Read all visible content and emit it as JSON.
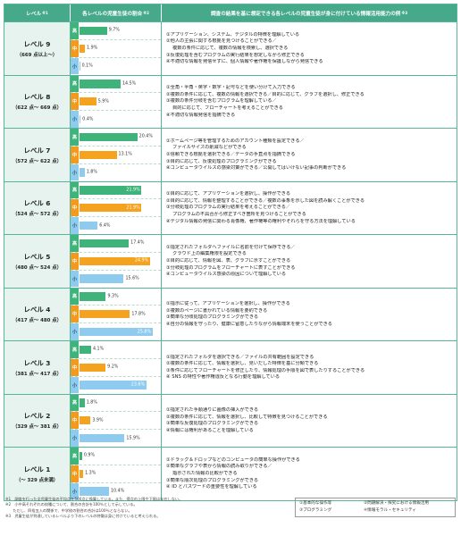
{
  "header": {
    "level": "レベル",
    "level_note": "※1",
    "ratio": "各レベルの児童生徒の割合",
    "ratio_note": "※2",
    "skill": "調査の結果を基に想定できる各レベルの児童生徒が身に付けている情報活用能力の例",
    "skill_note": "※3"
  },
  "tags": {
    "hi": "高",
    "mid": "中",
    "lo": "小"
  },
  "levels": [
    {
      "name": "レベル 9",
      "range": "（669 点以上〜）",
      "bars": [
        9.7,
        1.9,
        0.1
      ],
      "labels": [
        "9.7%",
        "1.9%",
        "0.1%"
      ],
      "skills": [
        "①アプリケーション、システム、デジタルの特徴を理解している",
        "②他人の主張に関する根拠を見つけることができる／",
        "複数の条件に応じて、複数の情報を検索し、選択できる",
        "③反復処理を含むプログラムの実行結果を想定しながら修正できる",
        "④不適切な情報を発信せずに、個人情報や著作権を保護しながら発信できる"
      ],
      "indent": [
        false,
        false,
        true,
        false,
        false
      ]
    },
    {
      "name": "レベル 8",
      "range": "（622 点〜 669 点）",
      "bars": [
        14.5,
        5.9,
        0.4
      ],
      "labels": [
        "14.5%",
        "5.9%",
        "0.4%"
      ],
      "skills": [
        "①全角・半角・英字・数字・記号などを使い分けて入力できる",
        "②複数の条件に応じて、複数の情報を選択できる／目的に応じて、グラフを選択し、修正できる",
        "③複数の条件分岐を含むプログラムを理解している／",
        "目的に応じて、フローチャートを考えることができる",
        "④不適切な情報発信を指摘できる"
      ],
      "indent": [
        false,
        false,
        false,
        true,
        false
      ]
    },
    {
      "name": "レベル 7",
      "range": "（572 点〜 622 点）",
      "bars": [
        20.4,
        13.1,
        1.8
      ],
      "labels": [
        "20.4%",
        "13.1%",
        "1.8%"
      ],
      "skills": [
        "①ホームページ等を管理するためのアカウント種類を設定できる／",
        "ファイルサイズの削減などができる",
        "②信頼できる根拠を選択できる／データの手直点を指摘できる",
        "③目的に応じて、反復処理のプログラミングができる",
        "④コンピュータウイルスの感染対策ができる／公開してはいけない記事の判断ができる"
      ],
      "indent": [
        false,
        true,
        false,
        false,
        false
      ]
    },
    {
      "name": "レベル 6",
      "range": "（524 点〜 572 点）",
      "bars": [
        21.9,
        21.9,
        6.4
      ],
      "labels": [
        "21.9%",
        "21.9%",
        "6.4%"
      ],
      "skills": [
        "①目的に応じて、アプリケーションを選択し、操作ができる",
        "②目的に応じて、情報を整理することができる／複数の事象を示した図を読み解くことができる",
        "③分岐処理のプログラムの実行結果を考えることができる／",
        "プログラムの不具合から修正すべき箇所を見つけることができる",
        "④デジタル情報の発信に関わる肖像権、著作権等の権利やそれらを守る方法を理解している"
      ],
      "indent": [
        false,
        false,
        false,
        true,
        false
      ]
    },
    {
      "name": "レベル 5",
      "range": "（480 点〜 524 点）",
      "bars": [
        17.4,
        24.9,
        15.6
      ],
      "labels": [
        "17.4%",
        "24.9%",
        "15.6%"
      ],
      "skills": [
        "①指定されたフォルダへファイルに名前を付けて保存できる／",
        "クラウド上の編集権限を設定できる",
        "②目的に応じて、情報を図、表、グラフに示すことができる",
        "③分岐処理のプログラムをフローチャートに表すことができる",
        "④コンピュータウイルス感染の原因について理解している"
      ],
      "indent": [
        false,
        true,
        false,
        false,
        false
      ]
    },
    {
      "name": "レベル 4",
      "range": "（417 点〜 480 点）",
      "bars": [
        9.3,
        17.8,
        25.8
      ],
      "labels": [
        "9.3%",
        "17.8%",
        "25.8%"
      ],
      "skills": [
        "①指示に従って、アプリケーションを選択し、操作ができる",
        "②複数のページに書かれている情報を要約できる",
        "③簡単な分岐処理のプログラミングができる",
        "④自分の情報を守ったり、健康に留意したりながら情報端末を使うことができる"
      ],
      "indent": [
        false,
        false,
        false,
        false
      ]
    },
    {
      "name": "レベル 3",
      "range": "（381 点〜 417 点）",
      "bars": [
        4.1,
        9.2,
        23.6
      ],
      "labels": [
        "4.1%",
        "9.2%",
        "23.6%"
      ],
      "skills": [
        "①指定されたフォルダを選択できる／ファイルの共有範囲を設定できる",
        "②複数の条件に応じて、情報を選択し、見いだした特徴を基に分類できる",
        "③条件に応じてフローチャートを修正したり、情報処理の手順を図で表したりすることができる",
        "④ SNS の特性や著作権違反となる行動を理解している"
      ],
      "indent": [
        false,
        false,
        false,
        false
      ]
    },
    {
      "name": "レベル 2",
      "range": "（329 点〜 381 点）",
      "bars": [
        1.8,
        3.9,
        15.9
      ],
      "labels": [
        "1.8%",
        "3.9%",
        "15.9%"
      ],
      "skills": [
        "①指定された手順通りに画像の挿入ができる",
        "②複数の条件に応じて、情報を選択し、比較して特徴を見つけることができる",
        "③簡単な反復処理のプログラミングができる",
        "④情報には権利があることを理解している"
      ],
      "indent": [
        false,
        false,
        false,
        false
      ]
    },
    {
      "name": "レベル 1",
      "range": "（〜 329 点未満）",
      "bars": [
        0.9,
        1.3,
        10.4
      ],
      "labels": [
        "0.9%",
        "1.3%",
        "10.4%"
      ],
      "skills": [
        "①ドラッグ＆ドロップなどのコンピュータの簡単な操作ができる",
        "②簡単なグラフや表から情報の読み取りができる／",
        "指示された情報の比較ができる",
        "③簡単な順次処理のプログラミングができる",
        "④ ID とパスワードの重要性を理解している"
      ],
      "indent": [
        false,
        false,
        true,
        false,
        false
      ]
    }
  ],
  "notes": [
    "※1　調査を行った全児童生徒の平均点を500点に換算している。また、得点の上限や下限は存在しない。",
    "※2　小中高それぞれの校種について、割合の合計を100％として示している。",
    "　　ただし、四捨五入の関係で、中学校の割合の合計は100％とならない。",
    "※3　児童生徒が到達しているレベルより下のレベルの特徴は身に付けていると考えられる。"
  ],
  "legend": [
    [
      "①基本的な操作等",
      "②問題解決・探究における情報活用"
    ],
    [
      "③プログラミング",
      "④情報モラル・セキュリティ"
    ]
  ],
  "colors": {
    "hi": "#3fb47a",
    "mid": "#f5a21e",
    "lo": "#8ecbee",
    "header": "#45a98a"
  }
}
